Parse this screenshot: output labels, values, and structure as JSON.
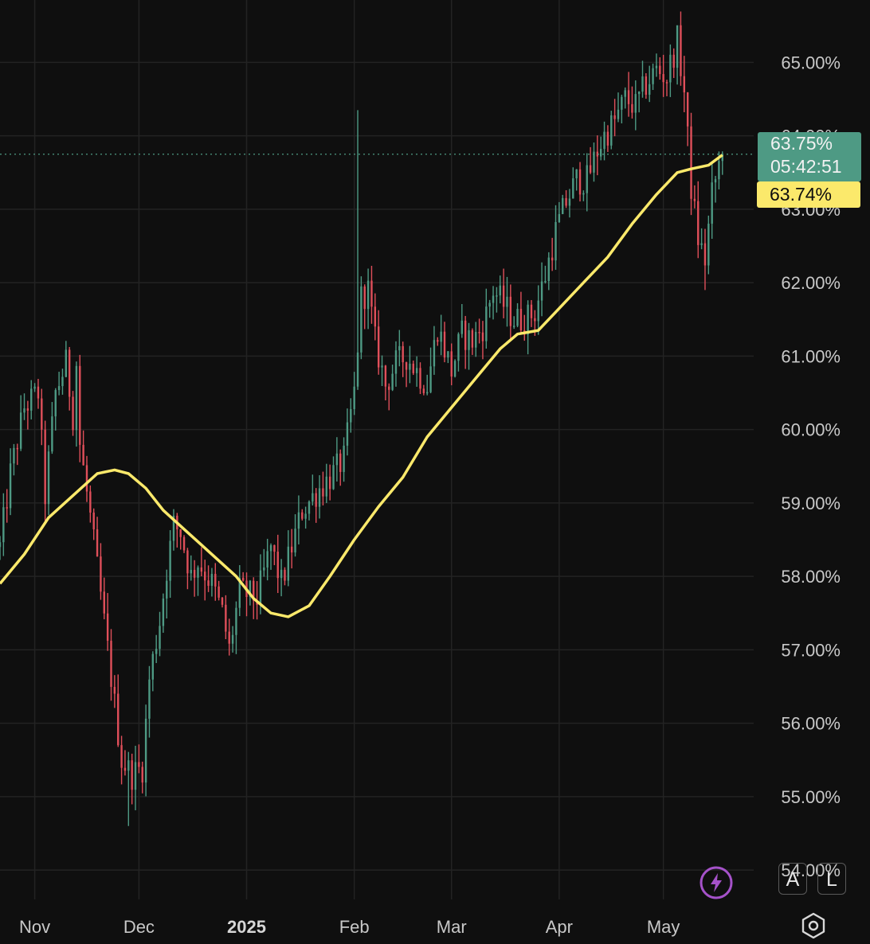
{
  "chart_data": {
    "type": "candlestick",
    "y_axis": {
      "ticks": [
        "54.00%",
        "55.00%",
        "56.00%",
        "57.00%",
        "58.00%",
        "59.00%",
        "60.00%",
        "61.00%",
        "62.00%",
        "63.00%",
        "64.00%",
        "65.00%"
      ],
      "ylim": [
        53.6,
        65.85
      ],
      "side": "right",
      "grid": true
    },
    "x_axis": {
      "ticks": [
        {
          "label": "Nov",
          "bold": false
        },
        {
          "label": "Dec",
          "bold": false
        },
        {
          "label": "2025",
          "bold": true
        },
        {
          "label": "Feb",
          "bold": false
        },
        {
          "label": "Mar",
          "bold": false
        },
        {
          "label": "Apr",
          "bold": false
        },
        {
          "label": "May",
          "bold": false
        }
      ],
      "range": [
        "2024-10-22",
        "2025-05-27"
      ],
      "tick_dates": [
        "2024-11-01",
        "2024-12-01",
        "2025-01-01",
        "2025-02-01",
        "2025-03-01",
        "2025-04-01",
        "2025-05-01"
      ],
      "grid": true
    },
    "price_path": [
      [
        "2024-10-22",
        58.4
      ],
      [
        "2024-10-25",
        59.4
      ],
      [
        "2024-10-29",
        60.3
      ],
      [
        "2024-11-02",
        60.5
      ],
      [
        "2024-11-04",
        59.1
      ],
      [
        "2024-11-07",
        60.5
      ],
      [
        "2024-11-10",
        60.9
      ],
      [
        "2024-11-12",
        60.2
      ],
      [
        "2024-11-13",
        60.9
      ],
      [
        "2024-11-14",
        59.8
      ],
      [
        "2024-11-17",
        58.8
      ],
      [
        "2024-11-19",
        58.1
      ],
      [
        "2024-11-22",
        57.0
      ],
      [
        "2024-11-26",
        55.5
      ],
      [
        "2024-11-29",
        55.3
      ],
      [
        "2024-12-02",
        55.4
      ],
      [
        "2024-12-04",
        56.6
      ],
      [
        "2024-12-07",
        57.4
      ],
      [
        "2024-12-09",
        58.1
      ],
      [
        "2024-12-11",
        58.7
      ],
      [
        "2024-12-13",
        58.6
      ],
      [
        "2024-12-16",
        58.0
      ],
      [
        "2024-12-18",
        58.2
      ],
      [
        "2024-12-22",
        57.9
      ],
      [
        "2024-12-25",
        57.5
      ],
      [
        "2024-12-27",
        57.0
      ],
      [
        "2024-12-30",
        57.8
      ],
      [
        "2025-01-04",
        57.7
      ],
      [
        "2025-01-08",
        58.4
      ],
      [
        "2025-01-11",
        57.9
      ],
      [
        "2025-01-14",
        58.4
      ],
      [
        "2025-01-17",
        58.9
      ],
      [
        "2025-01-22",
        59.2
      ],
      [
        "2025-01-26",
        59.4
      ],
      [
        "2025-01-29",
        59.6
      ],
      [
        "2025-02-01",
        60.5
      ],
      [
        "2025-02-03",
        61.8
      ],
      [
        "2025-02-05",
        61.9
      ],
      [
        "2025-02-07",
        61.2
      ],
      [
        "2025-02-10",
        60.6
      ],
      [
        "2025-02-13",
        60.9
      ],
      [
        "2025-02-16",
        61.0
      ],
      [
        "2025-02-19",
        60.8
      ],
      [
        "2025-02-22",
        60.6
      ],
      [
        "2025-02-25",
        61.4
      ],
      [
        "2025-03-01",
        60.8
      ],
      [
        "2025-03-04",
        61.3
      ],
      [
        "2025-03-07",
        61.2
      ],
      [
        "2025-03-10",
        61.4
      ],
      [
        "2025-03-13",
        61.9
      ],
      [
        "2025-03-16",
        61.7
      ],
      [
        "2025-03-19",
        61.5
      ],
      [
        "2025-03-22",
        61.5
      ],
      [
        "2025-03-25",
        61.6
      ],
      [
        "2025-03-28",
        62.1
      ],
      [
        "2025-03-31",
        62.7
      ],
      [
        "2025-04-03",
        63.1
      ],
      [
        "2025-04-06",
        63.4
      ],
      [
        "2025-04-09",
        63.4
      ],
      [
        "2025-04-12",
        63.8
      ],
      [
        "2025-04-14",
        64.0
      ],
      [
        "2025-04-17",
        64.2
      ],
      [
        "2025-04-20",
        64.5
      ],
      [
        "2025-04-23",
        64.4
      ],
      [
        "2025-04-26",
        64.7
      ],
      [
        "2025-04-29",
        64.9
      ],
      [
        "2025-05-02",
        64.8
      ],
      [
        "2025-05-05",
        65.3
      ],
      [
        "2025-05-07",
        64.6
      ],
      [
        "2025-05-09",
        63.3
      ],
      [
        "2025-05-11",
        62.6
      ],
      [
        "2025-05-13",
        62.3
      ],
      [
        "2025-05-15",
        63.2
      ],
      [
        "2025-05-17",
        63.6
      ],
      [
        "2025-05-18",
        63.75
      ]
    ],
    "moving_average": [
      [
        "2024-10-22",
        57.9
      ],
      [
        "2024-10-29",
        58.3
      ],
      [
        "2024-11-05",
        58.8
      ],
      [
        "2024-11-12",
        59.1
      ],
      [
        "2024-11-19",
        59.4
      ],
      [
        "2024-11-24",
        59.45
      ],
      [
        "2024-11-28",
        59.4
      ],
      [
        "2024-12-03",
        59.2
      ],
      [
        "2024-12-08",
        58.9
      ],
      [
        "2024-12-15",
        58.6
      ],
      [
        "2024-12-22",
        58.3
      ],
      [
        "2024-12-29",
        58.0
      ],
      [
        "2025-01-03",
        57.7
      ],
      [
        "2025-01-08",
        57.5
      ],
      [
        "2025-01-13",
        57.45
      ],
      [
        "2025-01-19",
        57.6
      ],
      [
        "2025-01-25",
        58.0
      ],
      [
        "2025-02-01",
        58.5
      ],
      [
        "2025-02-08",
        58.95
      ],
      [
        "2025-02-15",
        59.35
      ],
      [
        "2025-02-22",
        59.9
      ],
      [
        "2025-03-01",
        60.3
      ],
      [
        "2025-03-08",
        60.7
      ],
      [
        "2025-03-15",
        61.1
      ],
      [
        "2025-03-20",
        61.3
      ],
      [
        "2025-03-26",
        61.35
      ],
      [
        "2025-04-01",
        61.65
      ],
      [
        "2025-04-08",
        62.0
      ],
      [
        "2025-04-15",
        62.35
      ],
      [
        "2025-04-22",
        62.8
      ],
      [
        "2025-04-29",
        63.2
      ],
      [
        "2025-05-05",
        63.5
      ],
      [
        "2025-05-09",
        63.55
      ],
      [
        "2025-05-14",
        63.6
      ],
      [
        "2025-05-18",
        63.74
      ]
    ],
    "last_price": {
      "label": "63.75%",
      "value": 63.75,
      "countdown": "05:42:51",
      "color": "#4e9a84"
    },
    "ma_label": {
      "label": "63.74%",
      "value": 63.74,
      "color": "#fbe96b"
    },
    "colors": {
      "up": "#4e9a84",
      "down": "#e04f5a",
      "ma": "#fbe96b",
      "grid": "#232323",
      "background": "#0f0f0f"
    }
  },
  "controls": {
    "auto_scale_label": "A",
    "log_scale_label": "L",
    "lightning_icon": "lightning-icon",
    "settings_icon": "settings-icon"
  }
}
